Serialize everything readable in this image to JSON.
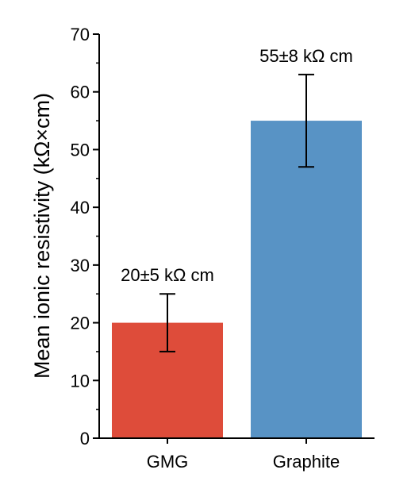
{
  "chart_data": {
    "type": "bar",
    "categories": [
      "GMG",
      "Graphite"
    ],
    "values": [
      20,
      55
    ],
    "errors": [
      5,
      8
    ],
    "bar_colors": [
      "#de4c3a",
      "#5893c5"
    ],
    "data_labels": [
      "20±5 kΩ cm",
      "55±8 kΩ cm"
    ],
    "ylabel": "Mean ionic resistivity (kΩ×cm)",
    "xlabel": "",
    "ylim": [
      0,
      70
    ],
    "yticks": [
      0,
      10,
      20,
      30,
      40,
      50,
      60,
      70
    ],
    "yticks_minor": [
      5,
      15,
      25,
      35,
      45,
      55,
      65
    ],
    "grid": false,
    "legend": "none"
  }
}
